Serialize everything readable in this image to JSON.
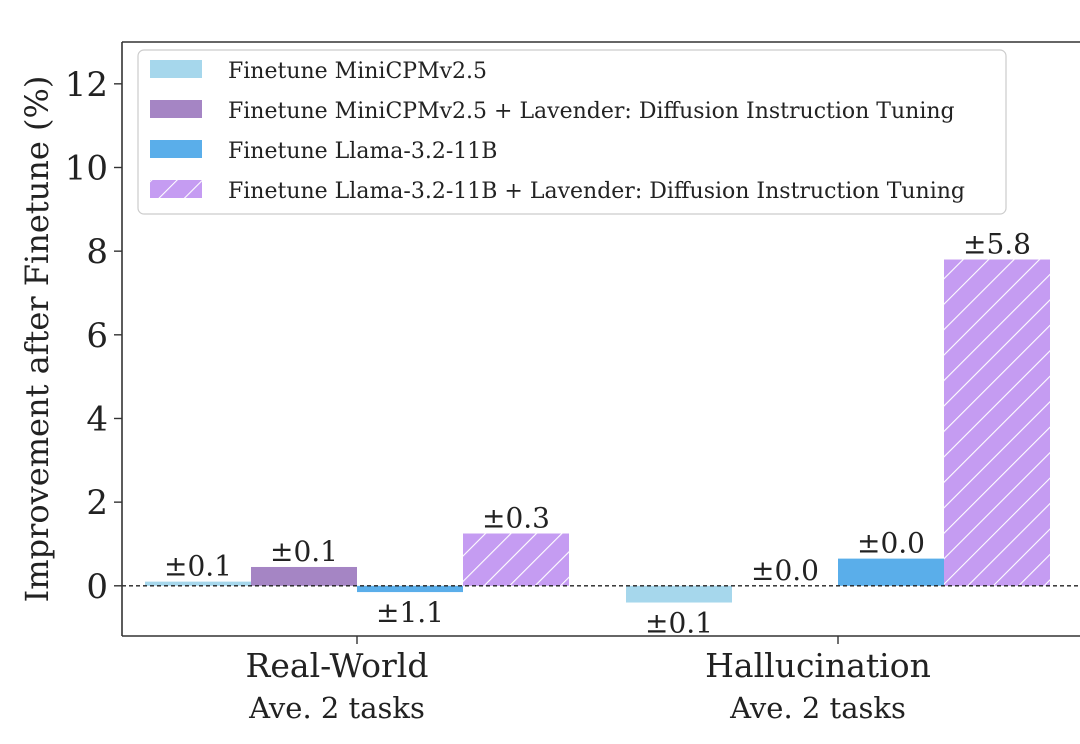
{
  "chart_data": {
    "type": "bar",
    "ylabel": "Improvement after Finetune (%)",
    "ylim": [
      -1.2,
      13
    ],
    "yticks": [
      0,
      2,
      4,
      6,
      8,
      10,
      12
    ],
    "grid": false,
    "legend_position": "top-left",
    "categories": [
      {
        "label": "Real-World",
        "sublabel": "Ave. 2 tasks"
      },
      {
        "label": "Hallucination",
        "sublabel": "Ave. 2 tasks"
      }
    ],
    "series": [
      {
        "name": "Finetune MiniCPMv2.5",
        "color": "#a6d7ec",
        "hatch": false,
        "values": [
          0.1,
          -0.4
        ],
        "errors": [
          "±0.1",
          "±0.1"
        ]
      },
      {
        "name": "Finetune MiniCPMv2.5  + Lavender: Diffusion Instruction Tuning",
        "color": "#a585c4",
        "hatch": false,
        "values": [
          0.45,
          0.0
        ],
        "errors": [
          "±0.1",
          "±0.0"
        ]
      },
      {
        "name": "Finetune Llama-3.2-11B",
        "color": "#5aaeea",
        "hatch": false,
        "values": [
          -0.15,
          0.65
        ],
        "errors": [
          "±1.1",
          "±0.0"
        ]
      },
      {
        "name": "Finetune Llama-3.2-11B  + Lavender: Diffusion Instruction Tuning",
        "color": "#c59cf2",
        "hatch": true,
        "values": [
          1.25,
          7.8
        ],
        "errors": [
          "±0.3",
          "±5.8"
        ]
      }
    ]
  }
}
